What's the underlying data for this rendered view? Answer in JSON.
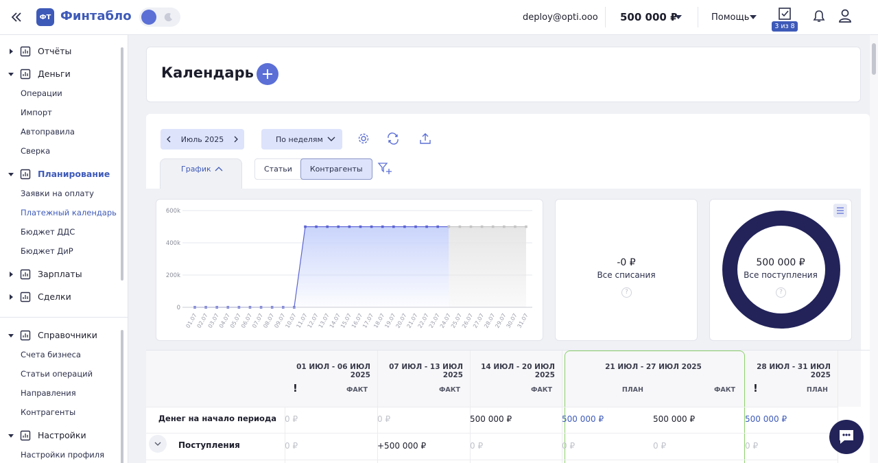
{
  "header": {
    "logo": "ФТ",
    "brand": "Финтабло",
    "email": "deploy@opti.ooo",
    "balance": "500 000 ₽",
    "help": "Помощь",
    "tasks": "3 из 8"
  },
  "sidebar": {
    "groups": [
      [
        {
          "title": "Отчёты",
          "items": []
        },
        {
          "title": "Деньги",
          "items": [
            {
              "label": "Операции"
            },
            {
              "label": "Импорт"
            },
            {
              "label": "Автоправила"
            },
            {
              "label": "Сверка"
            }
          ]
        },
        {
          "title": "Планирование",
          "active": true,
          "items": [
            {
              "label": "Заявки на оплату"
            },
            {
              "label": "Платежный календарь",
              "active": true
            },
            {
              "label": "Бюджет ДДС"
            },
            {
              "label": "Бюджет ДиР"
            }
          ]
        },
        {
          "title": "Зарплаты",
          "items": []
        },
        {
          "title": "Сделки",
          "items": []
        }
      ],
      [
        {
          "title": "Справочники",
          "items": [
            {
              "label": "Счета бизнеса"
            },
            {
              "label": "Статьи операций"
            },
            {
              "label": "Направления"
            },
            {
              "label": "Контрагенты"
            }
          ]
        },
        {
          "title": "Настройки",
          "items": [
            {
              "label": "Настройки профиля"
            }
          ]
        }
      ]
    ]
  },
  "page": {
    "title": "Календарь"
  },
  "toolbar": {
    "period": "Июль 2025",
    "grouping": "По неделям",
    "chart_tab": "График",
    "views": [
      {
        "label": "Статьи"
      },
      {
        "label": "Контрагенты",
        "active": true
      }
    ]
  },
  "chart_data": {
    "type": "line",
    "categories": [
      "01.07",
      "02.07",
      "03.07",
      "04.07",
      "05.07",
      "06.07",
      "07.07",
      "08.07",
      "09.07",
      "10.07",
      "11.07",
      "12.07",
      "13.07",
      "14.07",
      "15.07",
      "16.07",
      "17.07",
      "18.07",
      "19.07",
      "20.07",
      "21.07",
      "22.07",
      "23.07",
      "24.07",
      "25.07",
      "26.07",
      "27.07",
      "28.07",
      "29.07",
      "30.07",
      "31.07"
    ],
    "series": [
      {
        "color": "#5b63d3",
        "values": [
          0,
          0,
          0,
          0,
          0,
          0,
          0,
          0,
          0,
          0,
          500000,
          500000,
          500000,
          500000,
          500000,
          500000,
          500000,
          500000,
          500000,
          500000,
          500000,
          500000,
          500000,
          500000,
          null,
          null,
          null,
          null,
          null,
          null,
          null
        ]
      },
      {
        "color": "#c4c4c4",
        "values": [
          null,
          null,
          null,
          null,
          null,
          null,
          null,
          null,
          null,
          null,
          null,
          null,
          null,
          null,
          null,
          null,
          null,
          null,
          null,
          null,
          null,
          null,
          null,
          500000,
          500000,
          500000,
          500000,
          500000,
          500000,
          500000,
          500000
        ]
      }
    ],
    "ylim": [
      0,
      600000
    ],
    "yticks": [
      {
        "value": 0,
        "label": "0"
      },
      {
        "value": 200000,
        "label": "200k"
      },
      {
        "value": 400000,
        "label": "400k"
      },
      {
        "value": 600000,
        "label": "600k"
      }
    ],
    "grid": true
  },
  "summary": [
    {
      "value": "-0 ₽",
      "label": "Все списания",
      "help": "?"
    },
    {
      "value": "500 000 ₽",
      "label": "Все поступления",
      "help": "?"
    }
  ],
  "table": {
    "weeks": [
      {
        "label": "01 ИЮЛ - 06 ИЮЛ 2025",
        "flag": "!",
        "subs": [
          {
            "label": "ФАКТ"
          }
        ]
      },
      {
        "label": "07 ИЮЛ - 13 ИЮЛ 2025",
        "subs": [
          {
            "label": "ФАКТ"
          }
        ]
      },
      {
        "label": "14 ИЮЛ - 20 ИЮЛ 2025",
        "subs": [
          {
            "label": "ФАКТ"
          }
        ]
      },
      {
        "label": "21 ИЮЛ - 27 ИЮЛ 2025",
        "current": true,
        "subs": [
          {
            "label": "ПЛАН",
            "plan": true
          },
          {
            "label": "ФАКТ"
          }
        ]
      },
      {
        "label": "28 ИЮЛ - 31 ИЮЛ 2025",
        "flag": "!",
        "subs": [
          {
            "label": "ПЛАН",
            "plan": true
          }
        ]
      }
    ],
    "rows": [
      {
        "label": "Денег на начало периода",
        "cells": [
          {
            "text": "0 ₽",
            "muted": true
          },
          {
            "text": "0 ₽",
            "muted": true
          },
          {
            "text": "500 000 ₽"
          },
          {
            "text": "500 000 ₽"
          },
          {
            "text": "500 000 ₽"
          },
          {
            "text": "500 000 ₽"
          }
        ]
      },
      {
        "label": "Поступления",
        "expandable": true,
        "cells": [
          {
            "text": "0 ₽",
            "muted": true
          },
          {
            "text": "+500 000 ₽"
          },
          {
            "text": "0 ₽",
            "muted": true
          },
          {
            "text": "0 ₽",
            "muted": true
          },
          {
            "text": "0 ₽",
            "muted": true
          },
          {
            "text": "0 ₽",
            "muted": true
          }
        ]
      }
    ]
  }
}
